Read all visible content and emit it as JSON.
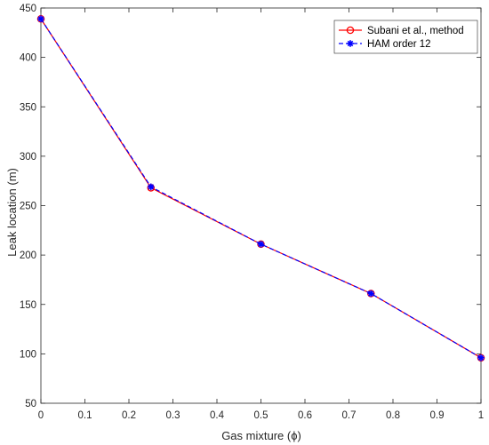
{
  "chart_data": {
    "type": "line",
    "title": "",
    "xlabel": "Gas mixture (ϕ)",
    "ylabel": "Leak location (m)",
    "xlim": [
      0,
      1
    ],
    "ylim": [
      50,
      450
    ],
    "xticks": [
      0,
      0.1,
      0.2,
      0.3,
      0.4,
      0.5,
      0.6,
      0.7,
      0.8,
      0.9,
      1
    ],
    "xtick_labels": [
      "0",
      "0.1",
      "0.2",
      "0.3",
      "0.4",
      "0.5",
      "0.6",
      "0.7",
      "0.8",
      "0.9",
      "1"
    ],
    "yticks": [
      50,
      100,
      150,
      200,
      250,
      300,
      350,
      400,
      450
    ],
    "ytick_labels": [
      "50",
      "100",
      "150",
      "200",
      "250",
      "300",
      "350",
      "400",
      "450"
    ],
    "grid": false,
    "legend_position": "top-right",
    "series": [
      {
        "name": "Subani et al., method",
        "color": "#ff0000",
        "line_style": "solid",
        "marker": "circle",
        "x": [
          0,
          0.25,
          0.5,
          0.75,
          1
        ],
        "y": [
          439,
          268,
          211,
          161,
          96
        ]
      },
      {
        "name": "HAM order 12",
        "color": "#0000ff",
        "line_style": "dashed",
        "marker": "asterisk",
        "x": [
          0,
          0.25,
          0.5,
          0.75,
          1
        ],
        "y": [
          439,
          269,
          211,
          161,
          96
        ]
      }
    ]
  }
}
